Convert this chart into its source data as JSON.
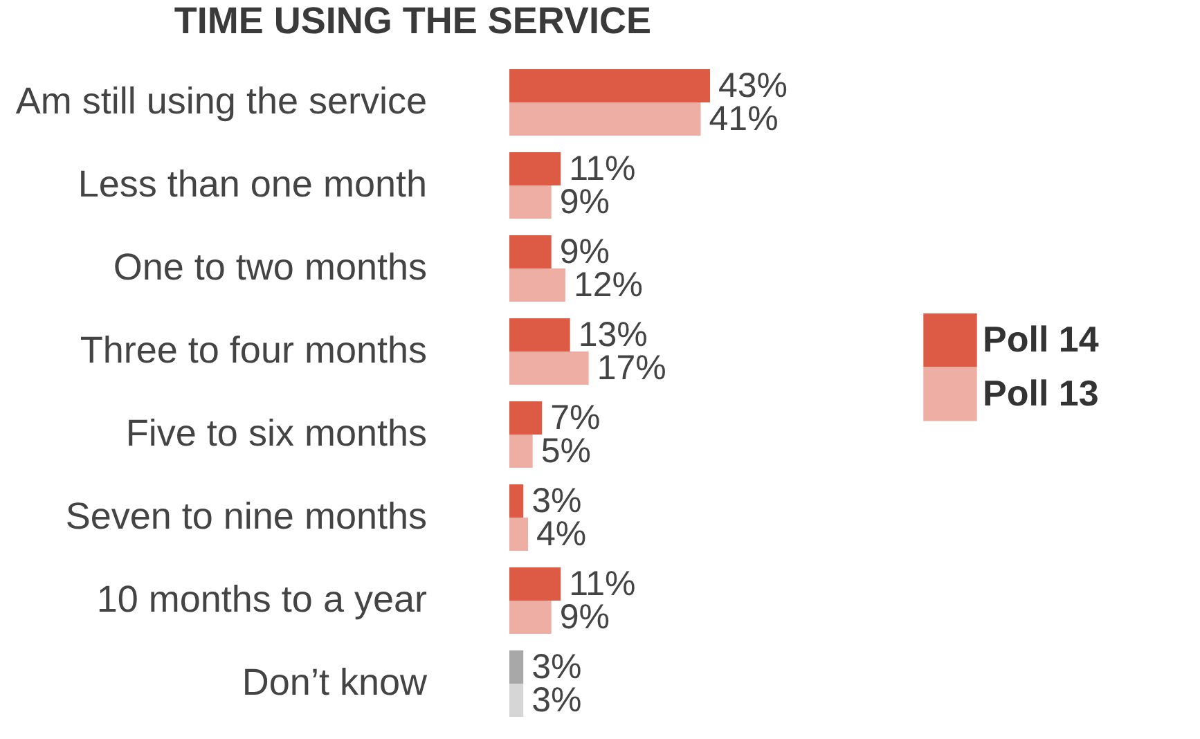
{
  "chart_data": {
    "type": "bar",
    "orientation": "horizontal",
    "title": "TIME USING THE SERVICE",
    "legend": "right",
    "categories": [
      "Am still using the service",
      "Less than one month",
      "One to two months",
      "Three to four months",
      "Five to six months",
      "Seven to nine months",
      "10 months to a year",
      "Don’t know"
    ],
    "series": [
      {
        "name": "Poll 14",
        "color": "#dd5a45",
        "colors": [
          "#dd5a45",
          "#dd5a45",
          "#dd5a45",
          "#dd5a45",
          "#dd5a45",
          "#dd5a45",
          "#dd5a45",
          "#a8a8a8"
        ],
        "values": [
          43,
          11,
          9,
          13,
          7,
          3,
          11,
          3
        ],
        "value_labels": [
          "43%",
          "11%",
          "9%",
          "13%",
          "7%",
          "3%",
          "11%",
          "3%"
        ]
      },
      {
        "name": "Poll 13",
        "color": "#eeaea3",
        "colors": [
          "#eeaea3",
          "#eeaea3",
          "#eeaea3",
          "#eeaea3",
          "#eeaea3",
          "#eeaea3",
          "#eeaea3",
          "#d6d6d6"
        ],
        "values": [
          41,
          9,
          12,
          17,
          5,
          4,
          9,
          3
        ],
        "value_labels": [
          "41%",
          "9%",
          "12%",
          "17%",
          "5%",
          "4%",
          "9%",
          "3%"
        ]
      }
    ]
  }
}
